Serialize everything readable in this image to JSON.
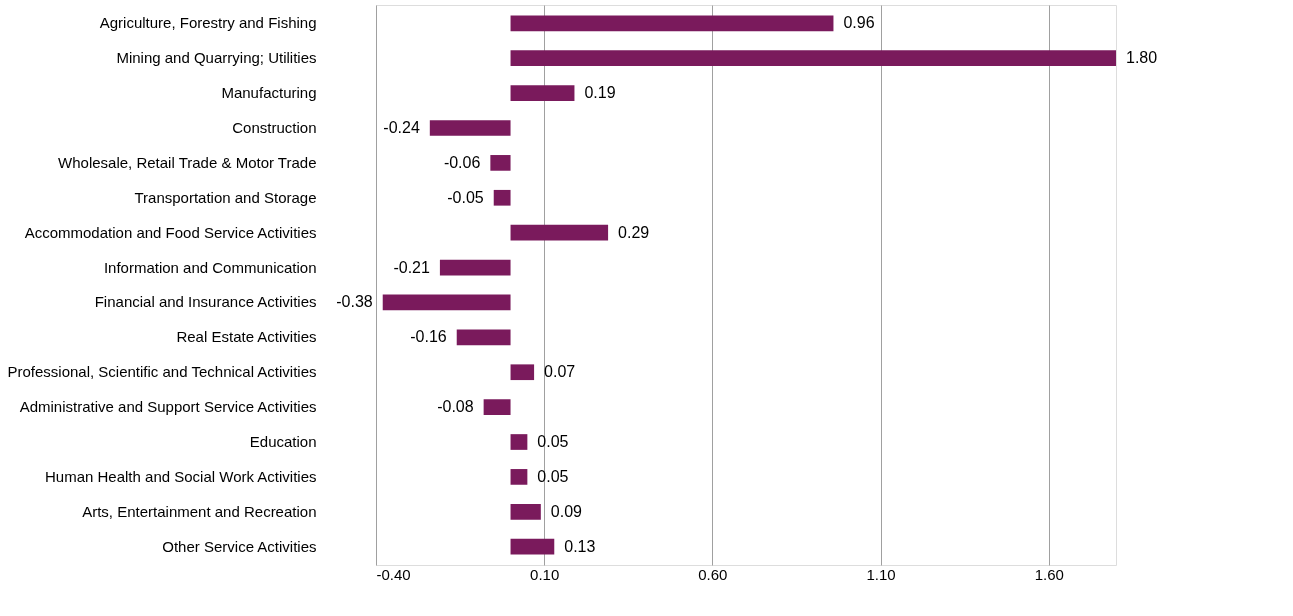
{
  "chart_data": {
    "type": "bar",
    "orientation": "horizontal",
    "categories": [
      "Agriculture, Forestry and Fishing",
      "Mining and Quarrying; Utilities",
      "Manufacturing",
      "Construction",
      "Wholesale, Retail Trade & Motor Trade",
      "Transportation and Storage",
      "Accommodation and Food Service Activities",
      "Information and Communication",
      "Financial and Insurance Activities",
      "Real Estate Activities",
      "Professional, Scientific and Technical Activities",
      "Administrative and Support Service Activities",
      "Education",
      "Human Health and Social Work Activities",
      "Arts, Entertainment and Recreation",
      "Other Service Activities"
    ],
    "values": [
      0.96,
      1.8,
      0.19,
      -0.24,
      -0.06,
      -0.05,
      0.29,
      -0.21,
      -0.38,
      -0.16,
      0.07,
      -0.08,
      0.05,
      0.05,
      0.09,
      0.13
    ],
    "color": "#7a1a5c",
    "xlim": [
      -0.4,
      1.8
    ],
    "value_labels": [
      "0.96",
      "1.80",
      "0.19",
      "-0.24",
      "-0.06",
      "-0.05",
      "0.29",
      "-0.21",
      "-0.38",
      "-0.16",
      "0.07",
      "-0.08",
      "0.05",
      "0.05",
      "0.09",
      "0.13"
    ],
    "xticks": [
      {
        "value": -0.4,
        "label": "-0.40"
      },
      {
        "value": 0.1,
        "label": "0.10"
      },
      {
        "value": 0.6,
        "label": "0.60"
      },
      {
        "value": 1.1,
        "label": "1.10"
      },
      {
        "value": 1.6,
        "label": "1.60"
      }
    ],
    "grid": "x"
  }
}
